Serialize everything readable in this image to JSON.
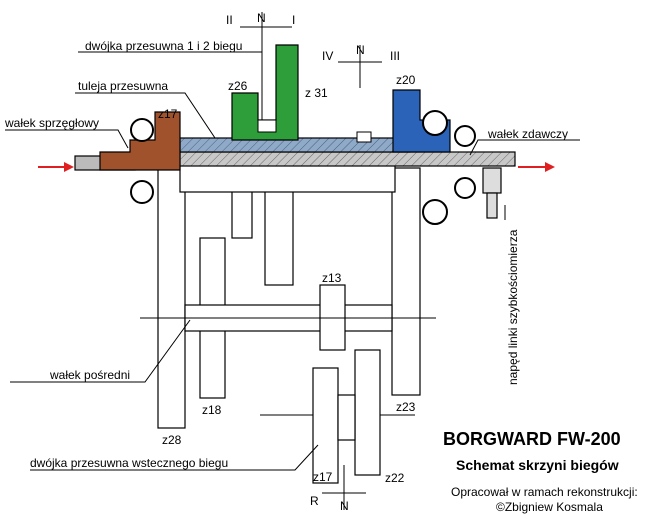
{
  "labels": {
    "shift_top_left": "II",
    "shift_top_n": "N",
    "shift_top_right": "I",
    "dwojka_12": "dwójka przesuwna 1 i 2 biegu",
    "shift_mid_left": "IV",
    "shift_mid_n": "N",
    "shift_mid_right": "III",
    "z20": "z20",
    "tuleja": "tuleja przesuwna",
    "z26": "z26",
    "z31": "z 31",
    "z17_top": "z17",
    "walek_sprzeglowy": "wałek  sprzęgłowy",
    "walek_zdawczy": "wałek zdawczy",
    "naped": "napęd linki szybkościomierza",
    "z13": "z13",
    "walek_posredni": "wałek pośredni",
    "z18": "z18",
    "z28": "z28",
    "z23": "z23",
    "dwojka_wsteczny": "dwójka przesuwna  wstecznego biegu",
    "z17_bottom": "z17",
    "z22": "z22",
    "shift_bottom_r": "R",
    "shift_bottom_n": "N"
  },
  "title": {
    "main": "BORGWARD  FW-200",
    "sub": "Schemat skrzyni biegów",
    "credit": "Opracował w ramach rekonstrukcji:",
    "author": "©Zbigniew Kosmala"
  }
}
